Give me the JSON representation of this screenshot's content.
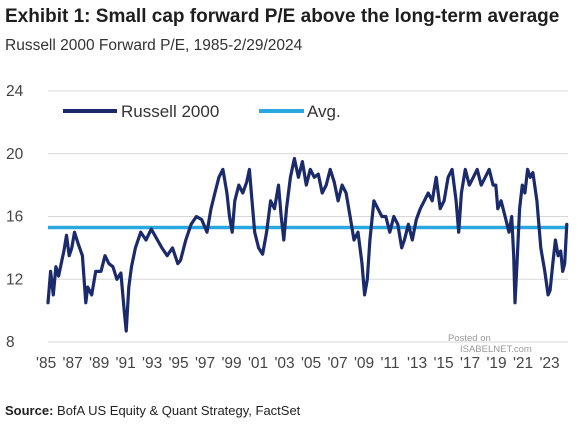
{
  "header": {
    "title": "Exhibit 1: Small cap forward P/E above the long-term average",
    "subtitle": "Russell 2000 Forward P/E, 1985-2/29/2024"
  },
  "footer": {
    "source_label": "Source:",
    "source_text": "BofA US Equity & Quant Strategy, FactSet"
  },
  "watermark": {
    "line1": "Posted on",
    "line2": "ISABELNET.com"
  },
  "colors": {
    "russell": "#1b2a6b",
    "avg": "#2aa7df",
    "grid": "#d7d7d7"
  },
  "chart_data": {
    "type": "line",
    "title": "Exhibit 1: Small cap forward P/E above the long-term average",
    "subtitle": "Russell 2000 Forward P/E, 1985-2/29/2024",
    "xlim": [
      1985,
      2024.25
    ],
    "ylim": [
      8,
      24
    ],
    "yticks": [
      8,
      12,
      16,
      20,
      24
    ],
    "xtick_labels": [
      "'85",
      "'87",
      "'89",
      "'91",
      "'93",
      "'95",
      "'97",
      "'99",
      "'01",
      "'03",
      "'05",
      "'07",
      "'09",
      "'11",
      "'13",
      "'15",
      "'17",
      "'19",
      "'21",
      "'23"
    ],
    "xtick_years": [
      1985,
      1987,
      1989,
      1991,
      1993,
      1995,
      1997,
      1999,
      2001,
      2003,
      2005,
      2007,
      2009,
      2011,
      2013,
      2015,
      2017,
      2019,
      2021,
      2023
    ],
    "grid": "horizontal",
    "legend": "top-left",
    "series": [
      {
        "name": "Russell 2000",
        "x": [
          1985.0,
          1985.2,
          1985.4,
          1985.6,
          1985.8,
          1986.0,
          1986.2,
          1986.4,
          1986.6,
          1986.8,
          1987.0,
          1987.3,
          1987.6,
          1987.85,
          1988.0,
          1988.3,
          1988.6,
          1989.0,
          1989.3,
          1989.6,
          1989.9,
          1990.2,
          1990.5,
          1990.75,
          1990.9,
          1991.1,
          1991.3,
          1991.6,
          1992.0,
          1992.4,
          1992.8,
          1993.2,
          1993.6,
          1994.0,
          1994.4,
          1994.8,
          1995.0,
          1995.4,
          1995.8,
          1996.2,
          1996.6,
          1997.0,
          1997.3,
          1997.6,
          1997.9,
          1998.2,
          1998.5,
          1998.7,
          1998.9,
          1999.1,
          1999.4,
          1999.7,
          2000.0,
          2000.2,
          2000.4,
          2000.6,
          2000.9,
          2001.2,
          2001.5,
          2001.8,
          2002.1,
          2002.4,
          2002.6,
          2002.8,
          2003.0,
          2003.3,
          2003.6,
          2003.9,
          2004.2,
          2004.5,
          2004.8,
          2005.1,
          2005.4,
          2005.7,
          2006.0,
          2006.3,
          2006.6,
          2006.9,
          2007.2,
          2007.5,
          2007.8,
          2008.1,
          2008.4,
          2008.7,
          2008.9,
          2009.1,
          2009.3,
          2009.6,
          2009.9,
          2010.2,
          2010.5,
          2010.8,
          2011.1,
          2011.4,
          2011.7,
          2011.9,
          2012.2,
          2012.5,
          2012.8,
          2013.1,
          2013.4,
          2013.7,
          2014.0,
          2014.3,
          2014.6,
          2014.9,
          2015.2,
          2015.5,
          2015.8,
          2016.0,
          2016.2,
          2016.5,
          2016.8,
          2017.1,
          2017.4,
          2017.7,
          2018.0,
          2018.3,
          2018.6,
          2018.8,
          2018.95,
          2019.2,
          2019.5,
          2019.8,
          2020.0,
          2020.15,
          2020.25,
          2020.4,
          2020.6,
          2020.8,
          2021.0,
          2021.2,
          2021.4,
          2021.6,
          2021.9,
          2022.2,
          2022.5,
          2022.75,
          2022.9,
          2023.1,
          2023.3,
          2023.5,
          2023.7,
          2023.85,
          2024.0,
          2024.16
        ],
        "values": [
          10.5,
          12.5,
          11.0,
          12.8,
          12.2,
          13.0,
          13.8,
          14.8,
          13.5,
          14.0,
          15.0,
          14.2,
          13.5,
          10.5,
          11.5,
          11.0,
          12.5,
          12.5,
          13.5,
          13.0,
          12.8,
          12.0,
          12.4,
          10.0,
          8.7,
          11.5,
          12.8,
          14.0,
          15.0,
          14.5,
          15.2,
          14.6,
          14.0,
          13.5,
          14.0,
          13.0,
          13.2,
          14.5,
          15.5,
          16.0,
          15.8,
          15.0,
          16.5,
          17.5,
          18.5,
          19.0,
          17.5,
          16.0,
          15.0,
          17.0,
          18.0,
          17.5,
          18.2,
          19.0,
          17.0,
          15.0,
          14.0,
          13.6,
          15.0,
          17.0,
          16.5,
          18.0,
          16.0,
          14.5,
          16.5,
          18.5,
          19.7,
          18.5,
          19.5,
          18.0,
          19.0,
          18.5,
          18.7,
          17.5,
          18.0,
          19.0,
          18.2,
          17.0,
          18.0,
          17.5,
          16.0,
          14.5,
          15.0,
          13.0,
          11.0,
          12.0,
          14.5,
          17.0,
          16.5,
          16.0,
          16.0,
          15.0,
          16.0,
          15.5,
          14.0,
          14.5,
          15.5,
          14.5,
          15.8,
          16.5,
          17.0,
          17.5,
          17.0,
          18.5,
          16.5,
          17.0,
          18.5,
          19.0,
          17.0,
          15.0,
          17.5,
          19.0,
          18.0,
          18.5,
          19.0,
          18.0,
          18.5,
          19.0,
          18.0,
          18.0,
          16.5,
          17.0,
          16.0,
          15.0,
          16.0,
          13.5,
          10.5,
          13.0,
          16.5,
          18.0,
          17.5,
          19.0,
          18.5,
          18.8,
          17.0,
          14.0,
          12.5,
          11.0,
          11.3,
          13.0,
          14.5,
          13.5,
          13.8,
          12.5,
          13.0,
          15.5
        ]
      },
      {
        "name": "Avg.",
        "x": [
          1985.0,
          2024.25
        ],
        "values": [
          15.3,
          15.3
        ]
      }
    ]
  }
}
